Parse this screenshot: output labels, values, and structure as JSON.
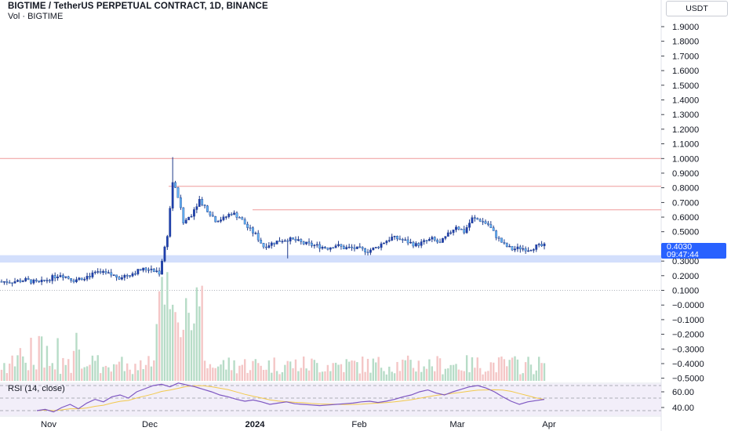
{
  "header": {
    "title": "BIGTIME / TetherUS PERPETUAL CONTRACT, 1D, BINANCE",
    "volume_label": "Vol · BIGTIME"
  },
  "currency_button": "USDT",
  "last_price": "0.4030",
  "countdown": "09:47:44",
  "rsi_label": "RSI (14, close)",
  "price_axis": [
    "1.9000",
    "1.8000",
    "1.7000",
    "1.6000",
    "1.5000",
    "1.4000",
    "1.3000",
    "1.2000",
    "1.1000",
    "1.0000",
    "0.9000",
    "0.8000",
    "0.7000",
    "0.6000",
    "0.5000",
    "0.3000",
    "0.2000",
    "0.1000",
    "−0.0000",
    "−0.1000",
    "−0.2000",
    "−0.3000",
    "−0.4000",
    "−0.5000"
  ],
  "rsi_axis": [
    "60.00",
    "40.00"
  ],
  "time_axis": [
    "Nov",
    "Dec",
    "2024",
    "Feb",
    "Mar",
    "Apr"
  ],
  "colors": {
    "up": "#26a69a",
    "candle_up": "#2962ff",
    "candle_down_hollow": "#1e3a8a",
    "resistance": "#ef9a9a",
    "support_zone": "#c8d7fb",
    "rsi_line": "#7e57c2",
    "rsi_ma": "#f2c94c"
  },
  "chart_data": {
    "type": "candlestick",
    "title": "BIGTIME / TetherUS PERPETUAL CONTRACT, 1D, BINANCE",
    "xlabel": "",
    "ylabel": "",
    "x_ticks": [
      "Nov",
      "Dec",
      "2024",
      "Feb",
      "Mar",
      "Apr"
    ],
    "ylim": [
      -0.55,
      1.95
    ],
    "levels": {
      "resistance": [
        1.0,
        0.81,
        0.65
      ],
      "support_zone": [
        0.29,
        0.34
      ],
      "dotted_lines": [
        0.1
      ]
    },
    "close_path": [
      [
        0,
        0.16
      ],
      [
        4,
        0.16
      ],
      [
        9,
        0.17
      ],
      [
        14,
        0.15
      ],
      [
        18,
        0.18
      ],
      [
        22,
        0.21
      ],
      [
        27,
        0.17
      ],
      [
        31,
        0.19
      ],
      [
        36,
        0.22
      ],
      [
        40,
        0.21
      ],
      [
        44,
        0.19
      ],
      [
        48,
        0.21
      ],
      [
        52,
        0.24
      ],
      [
        56,
        0.25
      ],
      [
        59,
        0.22
      ],
      [
        62,
        0.48
      ],
      [
        64,
        0.84
      ],
      [
        66,
        0.74
      ],
      [
        68,
        0.56
      ],
      [
        71,
        0.62
      ],
      [
        74,
        0.72
      ],
      [
        77,
        0.65
      ],
      [
        80,
        0.58
      ],
      [
        83,
        0.59
      ],
      [
        86,
        0.63
      ],
      [
        89,
        0.6
      ],
      [
        92,
        0.53
      ],
      [
        95,
        0.48
      ],
      [
        98,
        0.4
      ],
      [
        101,
        0.42
      ],
      [
        104,
        0.44
      ],
      [
        107,
        0.45
      ],
      [
        110,
        0.44
      ],
      [
        113,
        0.42
      ],
      [
        116,
        0.41
      ],
      [
        119,
        0.4
      ],
      [
        122,
        0.39
      ],
      [
        125,
        0.41
      ],
      [
        128,
        0.39
      ],
      [
        131,
        0.39
      ],
      [
        134,
        0.38
      ],
      [
        137,
        0.37
      ],
      [
        140,
        0.39
      ],
      [
        143,
        0.43
      ],
      [
        146,
        0.46
      ],
      [
        149,
        0.45
      ],
      [
        152,
        0.43
      ],
      [
        155,
        0.41
      ],
      [
        158,
        0.43
      ],
      [
        161,
        0.45
      ],
      [
        164,
        0.42
      ],
      [
        167,
        0.48
      ],
      [
        170,
        0.54
      ],
      [
        173,
        0.5
      ],
      [
        176,
        0.59
      ],
      [
        179,
        0.58
      ],
      [
        182,
        0.55
      ],
      [
        185,
        0.47
      ],
      [
        188,
        0.41
      ],
      [
        191,
        0.38
      ],
      [
        194,
        0.39
      ],
      [
        197,
        0.38
      ],
      [
        200,
        0.4
      ],
      [
        203,
        0.403
      ]
    ],
    "rsi": {
      "name": "RSI (14, close)",
      "levels": [
        70,
        50,
        30
      ],
      "ticks": [
        "60.00",
        "40.00"
      ],
      "values": [
        30,
        32,
        28,
        35,
        40,
        33,
        42,
        48,
        44,
        52,
        55,
        50,
        60,
        65,
        70,
        72,
        68,
        74,
        71,
        68,
        64,
        60,
        55,
        52,
        48,
        45,
        47,
        44,
        40,
        42,
        44,
        41,
        40,
        39,
        38,
        39,
        40,
        41,
        42,
        44,
        45,
        43,
        45,
        48,
        52,
        55,
        60,
        63,
        58,
        55,
        60,
        64,
        68,
        70,
        66,
        60,
        52,
        45,
        40,
        44,
        46,
        48
      ]
    }
  }
}
